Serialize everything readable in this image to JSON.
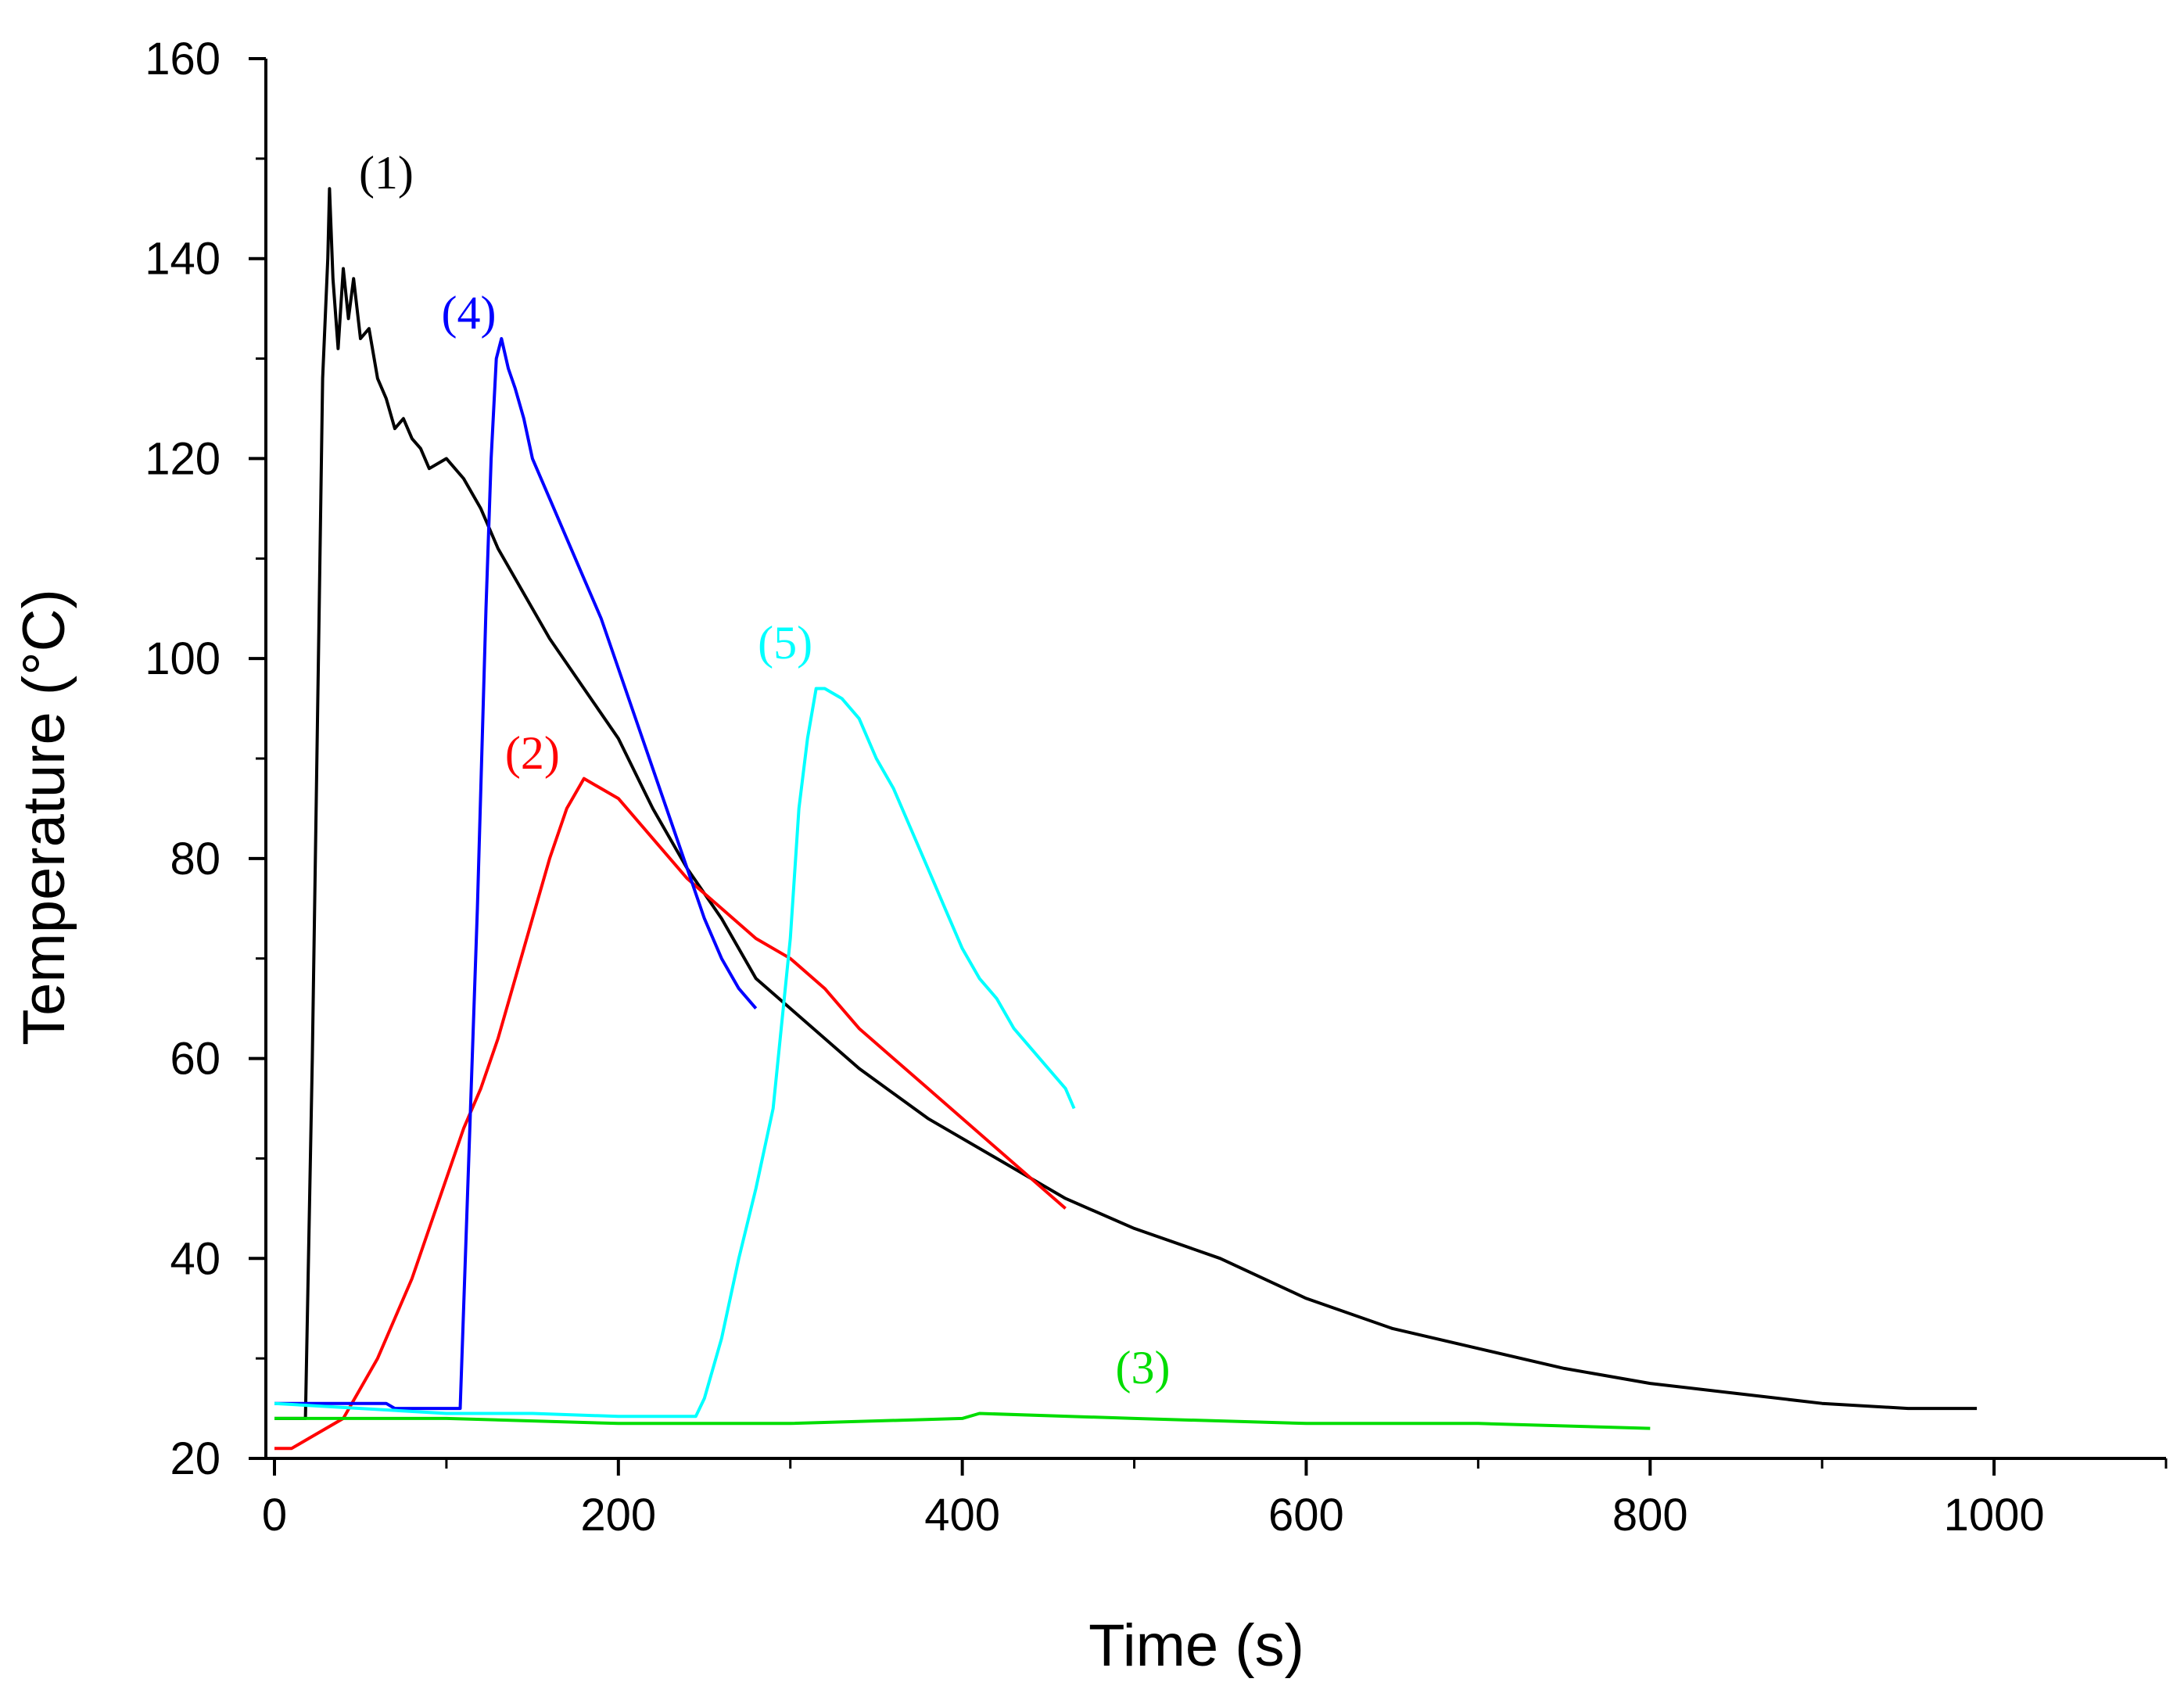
{
  "chart_data": {
    "type": "line",
    "title": "",
    "xlabel": "Time (s)",
    "ylabel": "Temperature (°C)",
    "xlim": [
      -5,
      1100
    ],
    "ylim": [
      20,
      160
    ],
    "xticks": [
      0,
      200,
      400,
      600,
      800,
      1000
    ],
    "yticks": [
      20,
      40,
      60,
      80,
      100,
      120,
      140,
      160
    ],
    "grid": false,
    "series": [
      {
        "name": "(1)",
        "color": "#000000",
        "label_at": [
          65,
          147
        ],
        "points": [
          [
            0,
            24
          ],
          [
            18,
            24
          ],
          [
            22,
            60
          ],
          [
            26,
            105
          ],
          [
            28,
            128
          ],
          [
            31,
            140
          ],
          [
            32,
            147
          ],
          [
            34,
            138
          ],
          [
            37,
            131
          ],
          [
            40,
            139
          ],
          [
            43,
            134
          ],
          [
            46,
            138
          ],
          [
            50,
            132
          ],
          [
            55,
            133
          ],
          [
            60,
            128
          ],
          [
            65,
            126
          ],
          [
            70,
            123
          ],
          [
            75,
            124
          ],
          [
            80,
            122
          ],
          [
            85,
            121
          ],
          [
            90,
            119
          ],
          [
            100,
            120
          ],
          [
            110,
            118
          ],
          [
            120,
            115
          ],
          [
            130,
            111
          ],
          [
            140,
            108
          ],
          [
            160,
            102
          ],
          [
            180,
            97
          ],
          [
            200,
            92
          ],
          [
            220,
            85
          ],
          [
            240,
            79
          ],
          [
            260,
            74
          ],
          [
            280,
            68
          ],
          [
            300,
            65
          ],
          [
            340,
            59
          ],
          [
            380,
            54
          ],
          [
            420,
            50
          ],
          [
            460,
            46
          ],
          [
            500,
            43
          ],
          [
            550,
            40
          ],
          [
            600,
            36
          ],
          [
            650,
            33
          ],
          [
            700,
            31
          ],
          [
            750,
            29
          ],
          [
            800,
            27.5
          ],
          [
            850,
            26.5
          ],
          [
            900,
            25.5
          ],
          [
            950,
            25
          ],
          [
            990,
            25
          ]
        ]
      },
      {
        "name": "(2)",
        "color": "#ff0000",
        "label_at": [
          150,
          89
        ],
        "points": [
          [
            0,
            21
          ],
          [
            10,
            21
          ],
          [
            20,
            22
          ],
          [
            30,
            23
          ],
          [
            40,
            24
          ],
          [
            50,
            27
          ],
          [
            60,
            30
          ],
          [
            70,
            34
          ],
          [
            80,
            38
          ],
          [
            90,
            43
          ],
          [
            100,
            48
          ],
          [
            110,
            53
          ],
          [
            120,
            57
          ],
          [
            130,
            62
          ],
          [
            140,
            68
          ],
          [
            150,
            74
          ],
          [
            160,
            80
          ],
          [
            170,
            85
          ],
          [
            180,
            88
          ],
          [
            190,
            87
          ],
          [
            200,
            86
          ],
          [
            220,
            82
          ],
          [
            240,
            78
          ],
          [
            260,
            75
          ],
          [
            280,
            72
          ],
          [
            300,
            70
          ],
          [
            320,
            67
          ],
          [
            340,
            63
          ],
          [
            360,
            60
          ],
          [
            380,
            57
          ],
          [
            400,
            54
          ],
          [
            420,
            51
          ],
          [
            440,
            48
          ],
          [
            460,
            45
          ]
        ]
      },
      {
        "name": "(3)",
        "color": "#00dd00",
        "label_at": [
          505,
          27.5
        ],
        "points": [
          [
            0,
            24
          ],
          [
            100,
            24
          ],
          [
            200,
            23.5
          ],
          [
            300,
            23.5
          ],
          [
            400,
            24
          ],
          [
            410,
            24.5
          ],
          [
            500,
            24
          ],
          [
            600,
            23.5
          ],
          [
            700,
            23.5
          ],
          [
            800,
            23
          ]
        ]
      },
      {
        "name": "(4)",
        "color": "#0000ff",
        "label_at": [
          113,
          133
        ],
        "points": [
          [
            0,
            25.5
          ],
          [
            65,
            25.5
          ],
          [
            70,
            25
          ],
          [
            108,
            25
          ],
          [
            112,
            45
          ],
          [
            118,
            75
          ],
          [
            123,
            105
          ],
          [
            126,
            120
          ],
          [
            129,
            130
          ],
          [
            132,
            132
          ],
          [
            136,
            129
          ],
          [
            140,
            127
          ],
          [
            145,
            124
          ],
          [
            150,
            120
          ],
          [
            160,
            116
          ],
          [
            170,
            112
          ],
          [
            180,
            108
          ],
          [
            190,
            104
          ],
          [
            200,
            99
          ],
          [
            210,
            94
          ],
          [
            220,
            89
          ],
          [
            230,
            84
          ],
          [
            240,
            79
          ],
          [
            250,
            74
          ],
          [
            260,
            70
          ],
          [
            270,
            67
          ],
          [
            280,
            65
          ]
        ]
      },
      {
        "name": "(5)",
        "color": "#00ffff",
        "label_at": [
          297,
          100
        ],
        "points": [
          [
            0,
            25.5
          ],
          [
            50,
            25
          ],
          [
            100,
            24.5
          ],
          [
            150,
            24.5
          ],
          [
            200,
            24.2
          ],
          [
            245,
            24.2
          ],
          [
            250,
            26
          ],
          [
            260,
            32
          ],
          [
            270,
            40
          ],
          [
            280,
            47
          ],
          [
            290,
            55
          ],
          [
            300,
            72
          ],
          [
            305,
            85
          ],
          [
            310,
            92
          ],
          [
            315,
            97
          ],
          [
            320,
            97
          ],
          [
            330,
            96
          ],
          [
            340,
            94
          ],
          [
            350,
            90
          ],
          [
            360,
            87
          ],
          [
            370,
            83
          ],
          [
            380,
            79
          ],
          [
            390,
            75
          ],
          [
            400,
            71
          ],
          [
            410,
            68
          ],
          [
            420,
            66
          ],
          [
            430,
            63
          ],
          [
            440,
            61
          ],
          [
            450,
            59
          ],
          [
            460,
            57
          ],
          [
            465,
            55
          ]
        ]
      }
    ]
  }
}
